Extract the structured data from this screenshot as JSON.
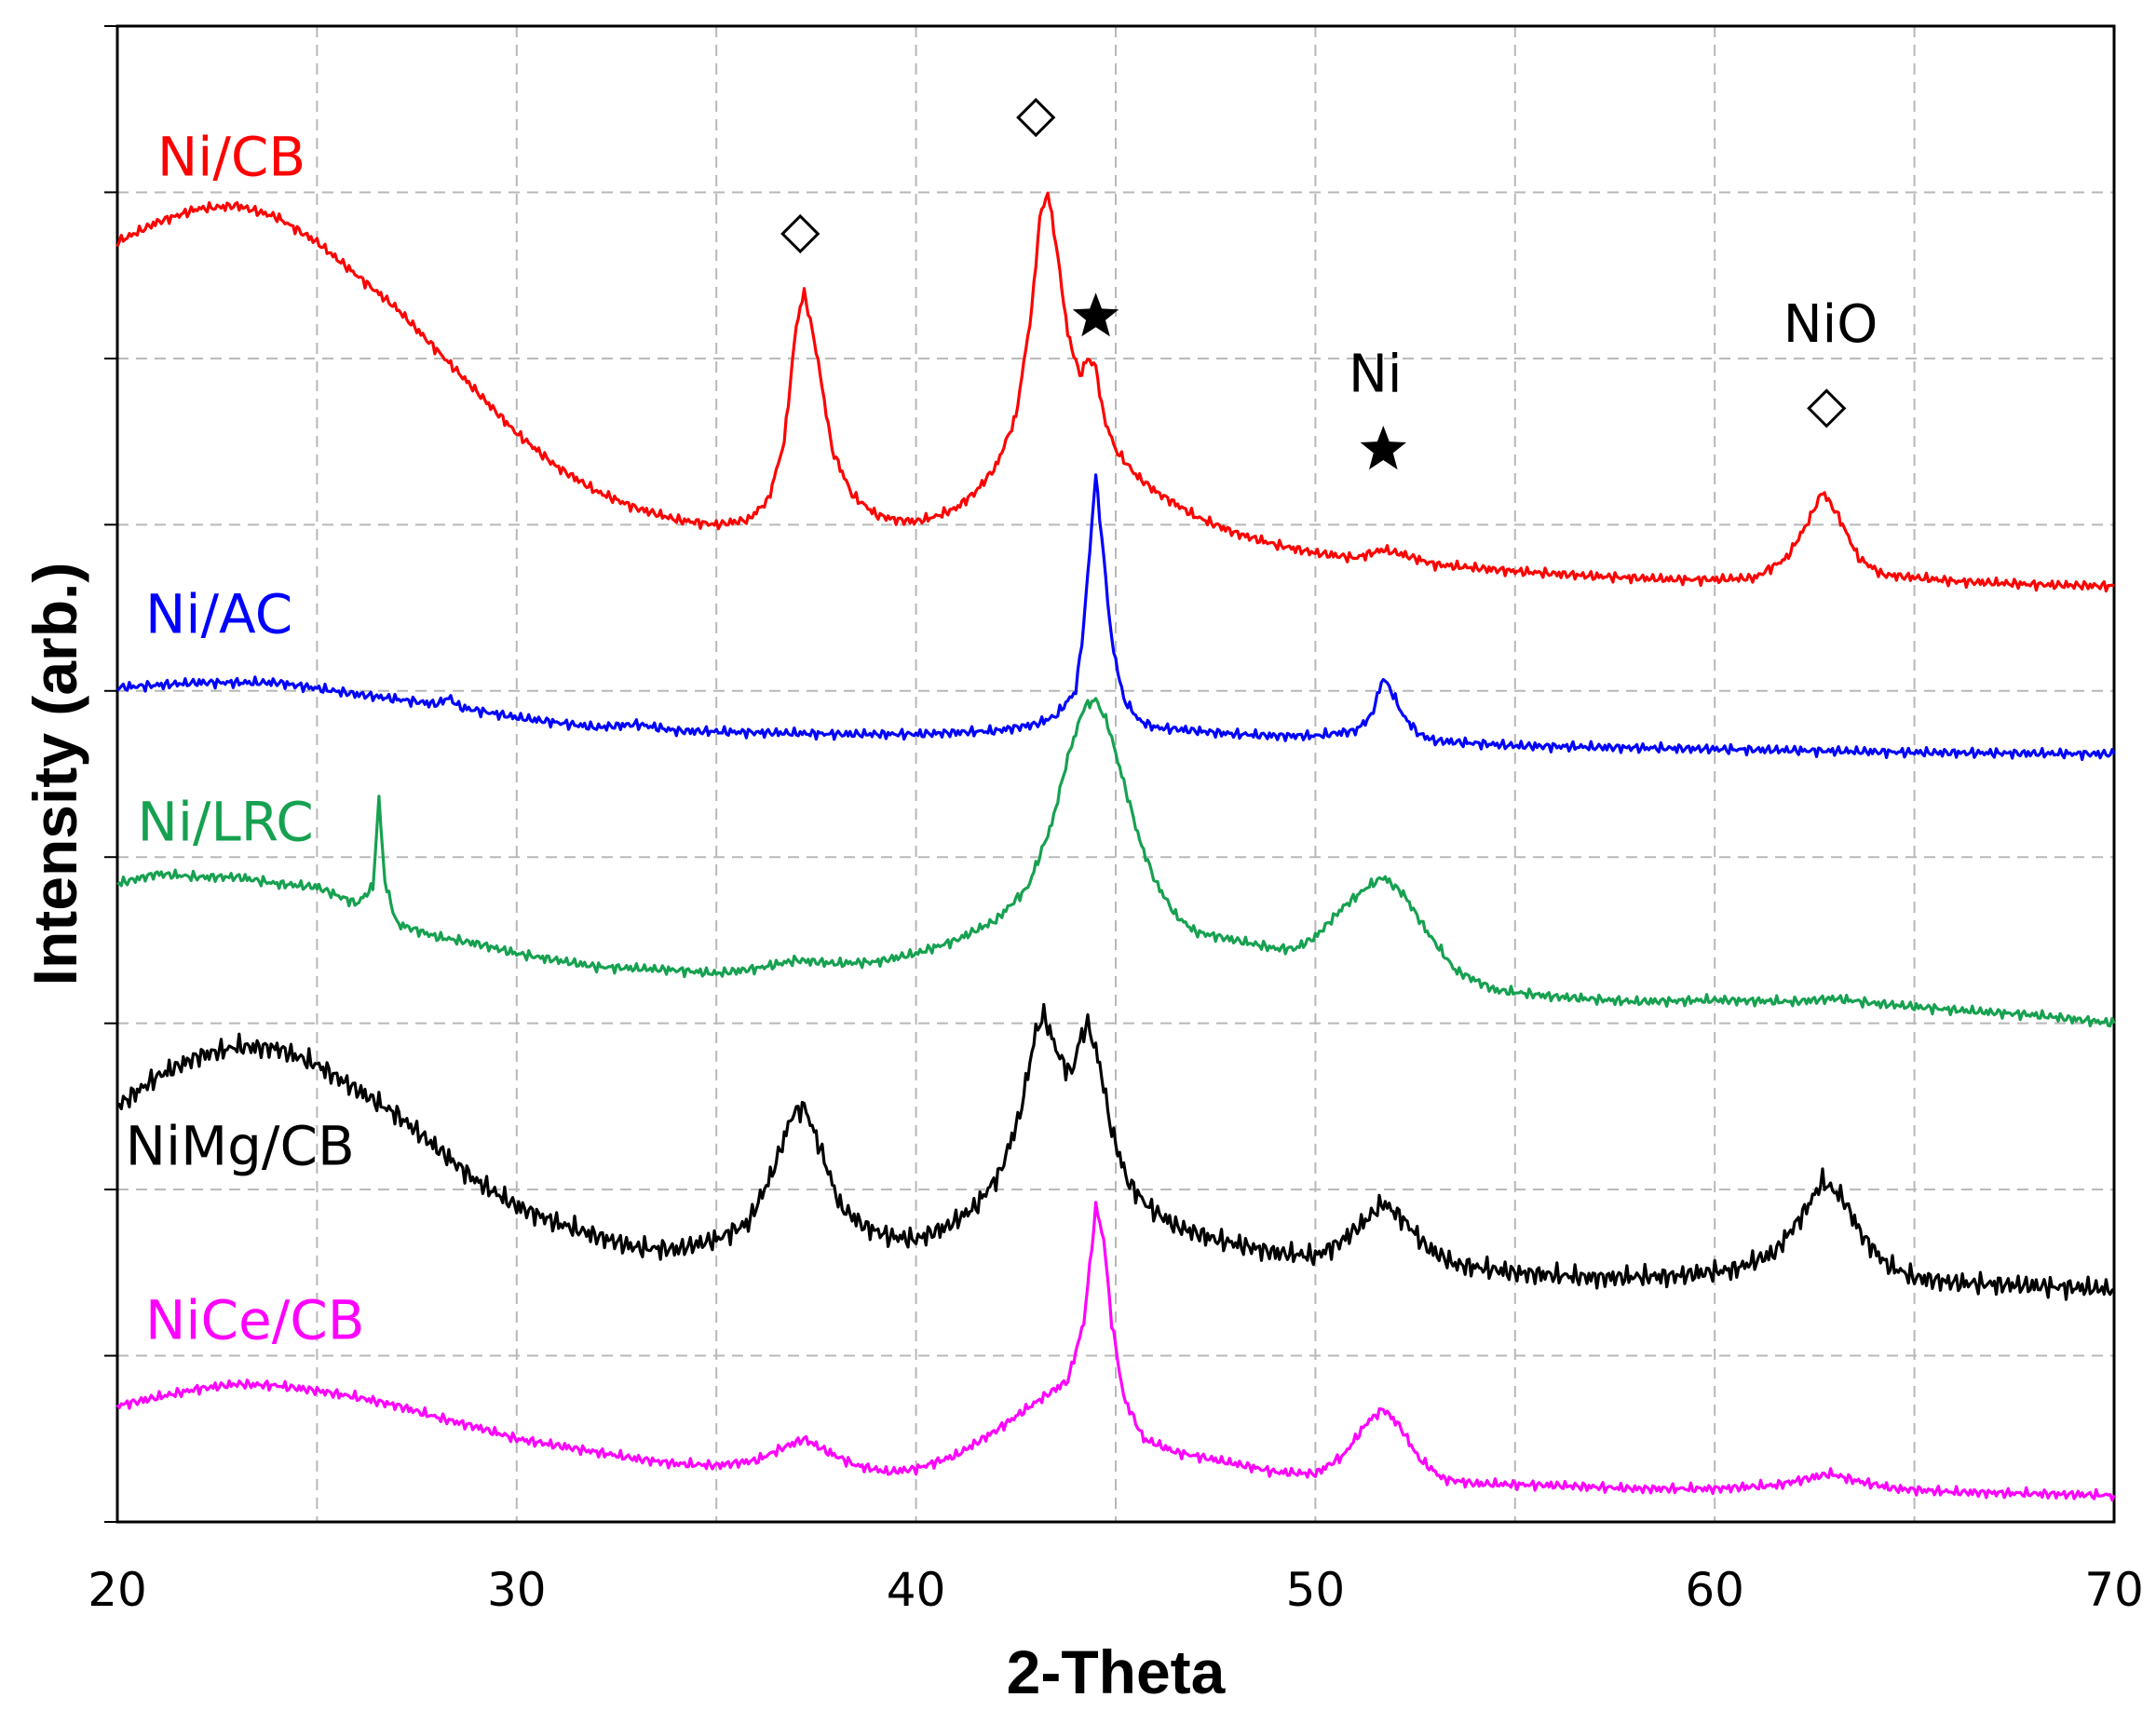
{
  "chart_data": {
    "type": "line",
    "title": "",
    "xlabel": "2-Theta",
    "ylabel": "Intensity (arb.)",
    "xlim": [
      20,
      70
    ],
    "ylim": [
      0,
      9
    ],
    "x_ticks": [
      20,
      30,
      40,
      50,
      60,
      70
    ],
    "grid": true,
    "series": [
      {
        "name": "Ni/CB",
        "color": "#ff0000",
        "label_x": 21,
        "label_y": 8.1,
        "points": [
          [
            20,
            7.7
          ],
          [
            21,
            7.82
          ],
          [
            22,
            7.9
          ],
          [
            23,
            7.92
          ],
          [
            24,
            7.85
          ],
          [
            25,
            7.7
          ],
          [
            26,
            7.5
          ],
          [
            27,
            7.3
          ],
          [
            28,
            7.05
          ],
          [
            29,
            6.8
          ],
          [
            30,
            6.55
          ],
          [
            31,
            6.35
          ],
          [
            32,
            6.2
          ],
          [
            33,
            6.1
          ],
          [
            34,
            6.03
          ],
          [
            35,
            6.0
          ],
          [
            35.8,
            6.03
          ],
          [
            36.3,
            6.15
          ],
          [
            36.7,
            6.5
          ],
          [
            37.0,
            7.2
          ],
          [
            37.2,
            7.4
          ],
          [
            37.5,
            7.05
          ],
          [
            37.9,
            6.45
          ],
          [
            38.4,
            6.18
          ],
          [
            39,
            6.06
          ],
          [
            39.5,
            6.03
          ],
          [
            40,
            6.02
          ],
          [
            40.5,
            6.05
          ],
          [
            41,
            6.1
          ],
          [
            41.5,
            6.2
          ],
          [
            42,
            6.35
          ],
          [
            42.5,
            6.65
          ],
          [
            42.9,
            7.3
          ],
          [
            43.1,
            7.85
          ],
          [
            43.3,
            8.0
          ],
          [
            43.5,
            7.7
          ],
          [
            43.8,
            7.15
          ],
          [
            44.1,
            6.9
          ],
          [
            44.3,
            7.0
          ],
          [
            44.5,
            6.95
          ],
          [
            44.7,
            6.65
          ],
          [
            45,
            6.45
          ],
          [
            45.5,
            6.3
          ],
          [
            46,
            6.2
          ],
          [
            47,
            6.05
          ],
          [
            48,
            5.95
          ],
          [
            49,
            5.88
          ],
          [
            50,
            5.83
          ],
          [
            51,
            5.8
          ],
          [
            51.7,
            5.85
          ],
          [
            52.2,
            5.82
          ],
          [
            53,
            5.76
          ],
          [
            55,
            5.72
          ],
          [
            57,
            5.69
          ],
          [
            59,
            5.67
          ],
          [
            60,
            5.67
          ],
          [
            61,
            5.68
          ],
          [
            61.8,
            5.8
          ],
          [
            62.3,
            6.0
          ],
          [
            62.7,
            6.2
          ],
          [
            63.1,
            6.05
          ],
          [
            63.6,
            5.8
          ],
          [
            64.2,
            5.7
          ],
          [
            66,
            5.66
          ],
          [
            68,
            5.64
          ],
          [
            70,
            5.63
          ]
        ]
      },
      {
        "name": "Ni/AC",
        "color": "#0000ff",
        "label_x": 20.7,
        "label_y": 5.35,
        "points": [
          [
            20,
            5.02
          ],
          [
            22,
            5.05
          ],
          [
            24,
            5.05
          ],
          [
            26,
            4.98
          ],
          [
            28,
            4.92
          ],
          [
            28.3,
            4.96
          ],
          [
            28.6,
            4.9
          ],
          [
            30,
            4.84
          ],
          [
            32,
            4.78
          ],
          [
            33,
            4.8
          ],
          [
            34,
            4.76
          ],
          [
            36,
            4.75
          ],
          [
            38,
            4.74
          ],
          [
            40,
            4.74
          ],
          [
            42,
            4.76
          ],
          [
            43,
            4.8
          ],
          [
            43.5,
            4.85
          ],
          [
            44,
            5.0
          ],
          [
            44.2,
            5.4
          ],
          [
            44.4,
            6.0
          ],
          [
            44.5,
            6.3
          ],
          [
            44.7,
            5.8
          ],
          [
            44.9,
            5.3
          ],
          [
            45.2,
            4.95
          ],
          [
            45.6,
            4.82
          ],
          [
            46,
            4.78
          ],
          [
            47,
            4.76
          ],
          [
            48,
            4.74
          ],
          [
            49,
            4.73
          ],
          [
            50,
            4.73
          ],
          [
            51,
            4.76
          ],
          [
            51.4,
            4.85
          ],
          [
            51.7,
            5.08
          ],
          [
            51.9,
            5.0
          ],
          [
            52.2,
            4.85
          ],
          [
            52.6,
            4.74
          ],
          [
            53,
            4.7
          ],
          [
            55,
            4.67
          ],
          [
            60,
            4.65
          ],
          [
            65,
            4.63
          ],
          [
            70,
            4.62
          ]
        ]
      },
      {
        "name": "Ni/LRC",
        "color": "#16a150",
        "label_x": 20.5,
        "label_y": 4.1,
        "points": [
          [
            20,
            3.84
          ],
          [
            21,
            3.9
          ],
          [
            22,
            3.88
          ],
          [
            23,
            3.88
          ],
          [
            24,
            3.84
          ],
          [
            25,
            3.82
          ],
          [
            26,
            3.72
          ],
          [
            26.4,
            3.82
          ],
          [
            26.55,
            4.35
          ],
          [
            26.7,
            3.85
          ],
          [
            27,
            3.6
          ],
          [
            28,
            3.52
          ],
          [
            29,
            3.48
          ],
          [
            30,
            3.42
          ],
          [
            31,
            3.38
          ],
          [
            32,
            3.34
          ],
          [
            34,
            3.32
          ],
          [
            35,
            3.3
          ],
          [
            36,
            3.33
          ],
          [
            37,
            3.38
          ],
          [
            38,
            3.36
          ],
          [
            39,
            3.37
          ],
          [
            40,
            3.42
          ],
          [
            41,
            3.5
          ],
          [
            42,
            3.62
          ],
          [
            42.8,
            3.82
          ],
          [
            43.4,
            4.2
          ],
          [
            43.8,
            4.6
          ],
          [
            44.2,
            4.9
          ],
          [
            44.5,
            4.95
          ],
          [
            44.8,
            4.8
          ],
          [
            45.2,
            4.45
          ],
          [
            45.6,
            4.1
          ],
          [
            46,
            3.85
          ],
          [
            46.5,
            3.65
          ],
          [
            47,
            3.55
          ],
          [
            48,
            3.5
          ],
          [
            49,
            3.45
          ],
          [
            49.5,
            3.45
          ],
          [
            50,
            3.52
          ],
          [
            50.7,
            3.7
          ],
          [
            51.3,
            3.82
          ],
          [
            51.7,
            3.88
          ],
          [
            52.2,
            3.78
          ],
          [
            52.8,
            3.55
          ],
          [
            53.5,
            3.32
          ],
          [
            54.5,
            3.2
          ],
          [
            56,
            3.16
          ],
          [
            58,
            3.13
          ],
          [
            60,
            3.14
          ],
          [
            62,
            3.13
          ],
          [
            63,
            3.15
          ],
          [
            64,
            3.12
          ],
          [
            66,
            3.08
          ],
          [
            68,
            3.05
          ],
          [
            70,
            3.0
          ]
        ]
      },
      {
        "name": "NiMg/CB",
        "color": "#000000",
        "label_x": 20.2,
        "label_y": 2.15,
        "points": [
          [
            20,
            2.5
          ],
          [
            21,
            2.68
          ],
          [
            22,
            2.8
          ],
          [
            23,
            2.86
          ],
          [
            24,
            2.85
          ],
          [
            25,
            2.75
          ],
          [
            26,
            2.6
          ],
          [
            27,
            2.45
          ],
          [
            28,
            2.25
          ],
          [
            29,
            2.05
          ],
          [
            30,
            1.9
          ],
          [
            31,
            1.8
          ],
          [
            32,
            1.72
          ],
          [
            33,
            1.65
          ],
          [
            34,
            1.64
          ],
          [
            35,
            1.7
          ],
          [
            35.8,
            1.8
          ],
          [
            36.4,
            2.1
          ],
          [
            36.9,
            2.45
          ],
          [
            37.2,
            2.5
          ],
          [
            37.6,
            2.25
          ],
          [
            38.1,
            1.9
          ],
          [
            38.7,
            1.78
          ],
          [
            39.3,
            1.72
          ],
          [
            40,
            1.7
          ],
          [
            40.8,
            1.78
          ],
          [
            41.5,
            1.9
          ],
          [
            42.1,
            2.1
          ],
          [
            42.6,
            2.45
          ],
          [
            43,
            2.95
          ],
          [
            43.2,
            3.05
          ],
          [
            43.5,
            2.85
          ],
          [
            43.7,
            2.75
          ],
          [
            43.9,
            2.7
          ],
          [
            44.1,
            2.9
          ],
          [
            44.3,
            3.0
          ],
          [
            44.6,
            2.75
          ],
          [
            44.9,
            2.35
          ],
          [
            45.3,
            2.05
          ],
          [
            45.8,
            1.9
          ],
          [
            46.5,
            1.78
          ],
          [
            47.5,
            1.7
          ],
          [
            49,
            1.62
          ],
          [
            50,
            1.6
          ],
          [
            50.6,
            1.68
          ],
          [
            51.2,
            1.8
          ],
          [
            51.7,
            1.92
          ],
          [
            52.2,
            1.82
          ],
          [
            52.8,
            1.65
          ],
          [
            53.5,
            1.55
          ],
          [
            55,
            1.5
          ],
          [
            57,
            1.47
          ],
          [
            59,
            1.48
          ],
          [
            60.5,
            1.52
          ],
          [
            61.5,
            1.62
          ],
          [
            62.2,
            1.85
          ],
          [
            62.7,
            2.05
          ],
          [
            63.2,
            1.95
          ],
          [
            63.7,
            1.72
          ],
          [
            64.3,
            1.55
          ],
          [
            65,
            1.47
          ],
          [
            66,
            1.44
          ],
          [
            68,
            1.42
          ],
          [
            70,
            1.4
          ]
        ]
      },
      {
        "name": "NiCe/CB",
        "color": "#ff00ff",
        "label_x": 20.7,
        "label_y": 1.1,
        "points": [
          [
            20,
            0.7
          ],
          [
            21,
            0.75
          ],
          [
            22,
            0.8
          ],
          [
            23,
            0.83
          ],
          [
            24,
            0.82
          ],
          [
            25,
            0.79
          ],
          [
            26,
            0.75
          ],
          [
            27,
            0.7
          ],
          [
            28,
            0.63
          ],
          [
            29,
            0.57
          ],
          [
            30,
            0.5
          ],
          [
            31,
            0.46
          ],
          [
            32,
            0.42
          ],
          [
            33,
            0.38
          ],
          [
            34,
            0.35
          ],
          [
            35,
            0.34
          ],
          [
            36,
            0.37
          ],
          [
            36.7,
            0.45
          ],
          [
            37.2,
            0.5
          ],
          [
            37.8,
            0.42
          ],
          [
            38.5,
            0.34
          ],
          [
            39.3,
            0.3
          ],
          [
            40,
            0.32
          ],
          [
            41,
            0.4
          ],
          [
            42,
            0.55
          ],
          [
            43,
            0.72
          ],
          [
            43.8,
            0.85
          ],
          [
            44.2,
            1.2
          ],
          [
            44.4,
            1.65
          ],
          [
            44.5,
            1.9
          ],
          [
            44.7,
            1.7
          ],
          [
            44.9,
            1.2
          ],
          [
            45.2,
            0.75
          ],
          [
            45.7,
            0.5
          ],
          [
            46.5,
            0.42
          ],
          [
            48,
            0.35
          ],
          [
            49,
            0.3
          ],
          [
            50,
            0.29
          ],
          [
            50.7,
            0.4
          ],
          [
            51.3,
            0.6
          ],
          [
            51.7,
            0.68
          ],
          [
            52.1,
            0.58
          ],
          [
            52.6,
            0.38
          ],
          [
            53.2,
            0.26
          ],
          [
            54,
            0.23
          ],
          [
            56,
            0.22
          ],
          [
            58,
            0.2
          ],
          [
            60,
            0.2
          ],
          [
            61.5,
            0.22
          ],
          [
            62.3,
            0.26
          ],
          [
            62.9,
            0.29
          ],
          [
            63.5,
            0.25
          ],
          [
            64.5,
            0.2
          ],
          [
            66,
            0.18
          ],
          [
            68,
            0.17
          ],
          [
            70,
            0.16
          ]
        ]
      }
    ],
    "annotations": [
      {
        "type": "diamond",
        "x": 37.1,
        "y": 7.75
      },
      {
        "type": "diamond",
        "x": 43.0,
        "y": 8.45
      },
      {
        "type": "star",
        "x": 44.5,
        "y": 7.25
      },
      {
        "type": "star",
        "x": 51.7,
        "y": 6.45
      },
      {
        "type": "text",
        "text": "Ni",
        "x": 51.5,
        "y": 6.8
      },
      {
        "type": "text",
        "text": "NiO",
        "x": 62.9,
        "y": 7.1
      },
      {
        "type": "diamond",
        "x": 62.8,
        "y": 6.7
      }
    ]
  }
}
